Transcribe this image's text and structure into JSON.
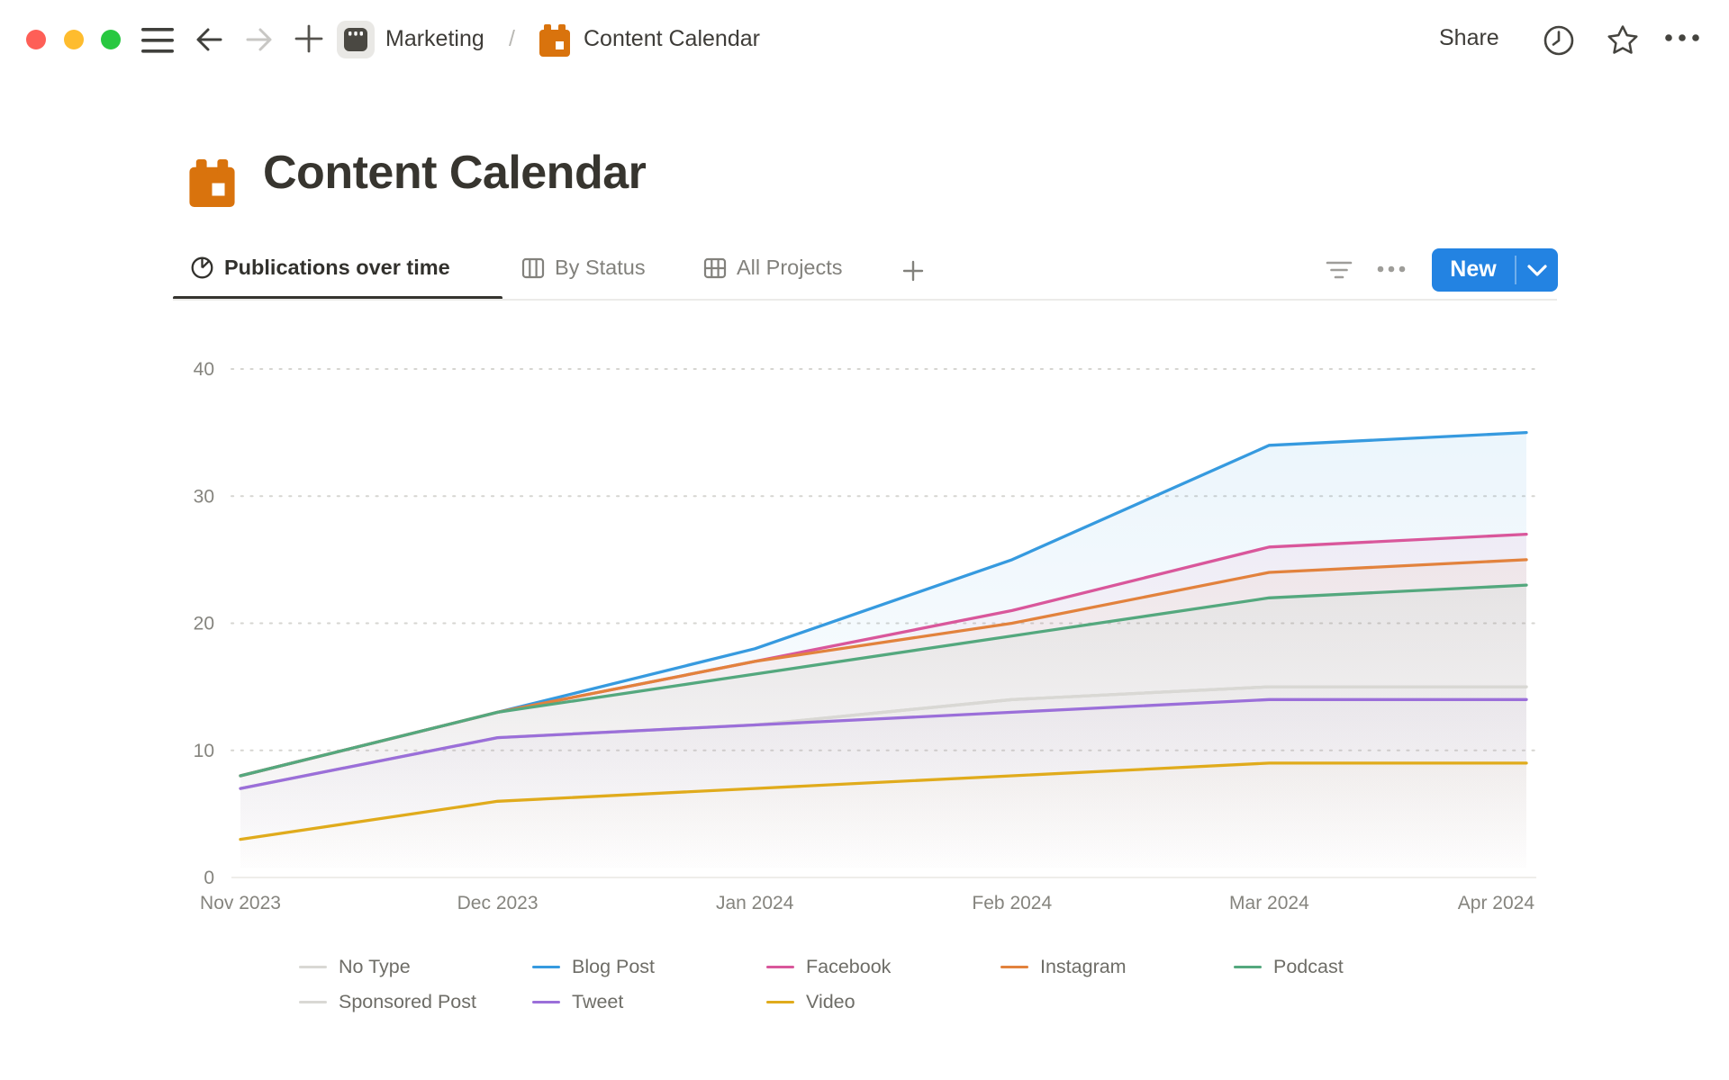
{
  "window": {
    "traffic_lights": [
      "#FE5F57",
      "#FEBC2E",
      "#28C840"
    ]
  },
  "colors": {
    "accent_blue": "#2383E2",
    "icon_orange": "#D9730D"
  },
  "topbar": {
    "breadcrumb": {
      "workspace": "Marketing",
      "separator": "/",
      "page": "Content Calendar"
    },
    "share_label": "Share"
  },
  "page": {
    "title": "Content Calendar"
  },
  "tabs": [
    {
      "label": "Publications over time",
      "active": true
    },
    {
      "label": "By Status",
      "active": false
    },
    {
      "label": "All Projects",
      "active": false
    }
  ],
  "toolbar": {
    "new_label": "New"
  },
  "chart_data": {
    "type": "area",
    "title": "Publications over time",
    "xlabel": "",
    "ylabel": "",
    "x": [
      "Nov 2023",
      "Dec 2023",
      "Jan 2024",
      "Feb 2024",
      "Mar 2024",
      "Apr 2024"
    ],
    "ylim": [
      0,
      40
    ],
    "yticks": [
      0,
      10,
      20,
      30,
      40
    ],
    "grid": "horizontal-dotted",
    "legend_position": "bottom",
    "series": [
      {
        "name": "No Type",
        "color": "#D9D8D4",
        "values": [
          7,
          11,
          12,
          14,
          15,
          15
        ]
      },
      {
        "name": "Blog Post",
        "color": "#369ADF",
        "values": [
          8,
          13,
          18,
          25,
          34,
          35
        ]
      },
      {
        "name": "Facebook",
        "color": "#D9579B",
        "values": [
          8,
          13,
          17,
          21,
          26,
          27
        ]
      },
      {
        "name": "Instagram",
        "color": "#E2823D",
        "values": [
          8,
          13,
          17,
          20,
          24,
          25
        ]
      },
      {
        "name": "Podcast",
        "color": "#54A87E",
        "values": [
          8,
          13,
          16,
          19,
          22,
          23
        ]
      },
      {
        "name": "Sponsored Post",
        "color": "#D9D8D4",
        "values": [
          7,
          11,
          12,
          14,
          15,
          15
        ]
      },
      {
        "name": "Tweet",
        "color": "#9B6FD9",
        "values": [
          7,
          11,
          12,
          13,
          14,
          14
        ]
      },
      {
        "name": "Video",
        "color": "#E0AB1C",
        "values": [
          3,
          6,
          7,
          8,
          9,
          9
        ]
      }
    ]
  }
}
